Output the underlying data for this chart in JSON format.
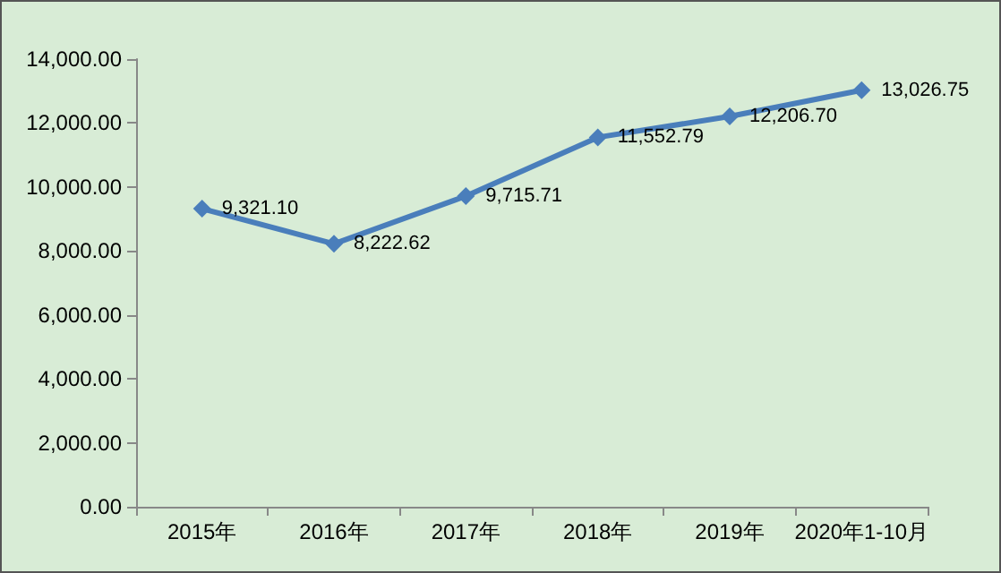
{
  "chart_data": {
    "type": "line",
    "categories": [
      "2015年",
      "2016年",
      "2017年",
      "2018年",
      "2019年",
      "2020年1-10月"
    ],
    "series": [
      {
        "color": "#4a7ebb",
        "values": [
          9321.1,
          8222.62,
          9715.71,
          11552.79,
          12206.7,
          13026.75
        ],
        "value_labels": [
          "9,321.10",
          "8,222.62",
          "9,715.71",
          "11,552.79",
          "12,206.70",
          "13,026.75"
        ]
      }
    ],
    "ylim": [
      0,
      14000
    ],
    "yticks": [
      {
        "value": 0,
        "label": "0.00"
      },
      {
        "value": 2000,
        "label": "2,000.00"
      },
      {
        "value": 4000,
        "label": "4,000.00"
      },
      {
        "value": 6000,
        "label": "6,000.00"
      },
      {
        "value": 8000,
        "label": "8,000.00"
      },
      {
        "value": 10000,
        "label": "10,000.00"
      },
      {
        "value": 12000,
        "label": "12,000.00"
      },
      {
        "value": 14000,
        "label": "14,000.00"
      }
    ],
    "marker": "diamond",
    "line_style": "solid"
  }
}
